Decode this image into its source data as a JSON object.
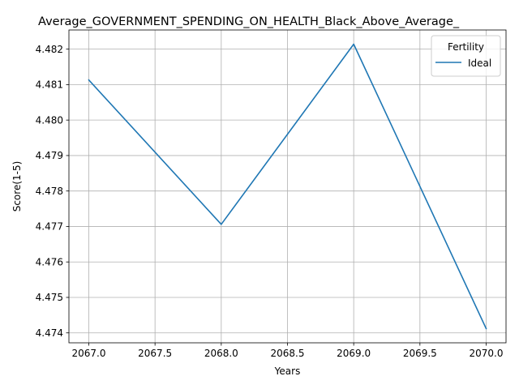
{
  "chart_data": {
    "type": "line",
    "title": "Average_GOVERNMENT_SPENDING_ON_HEALTH_Black_Above_Average_",
    "xlabel": "Years",
    "ylabel": "Score(1-5)",
    "x": [
      2067.0,
      2068.0,
      2069.0,
      2070.0
    ],
    "series": [
      {
        "name": "Ideal",
        "color": "#1f77b4",
        "values": [
          4.48113,
          4.47706,
          4.48214,
          4.47412
        ]
      }
    ],
    "xlim": [
      2066.85,
      2070.15
    ],
    "ylim": [
      4.47372,
      4.48254
    ],
    "xticks": [
      2067.0,
      2067.5,
      2068.0,
      2068.5,
      2069.0,
      2069.5,
      2070.0
    ],
    "xtick_labels": [
      "2067.0",
      "2067.5",
      "2068.0",
      "2068.5",
      "2069.0",
      "2069.5",
      "2070.0"
    ],
    "yticks": [
      4.474,
      4.475,
      4.476,
      4.477,
      4.478,
      4.479,
      4.48,
      4.481,
      4.482
    ],
    "ytick_labels": [
      "4.474",
      "4.475",
      "4.476",
      "4.477",
      "4.478",
      "4.479",
      "4.480",
      "4.481",
      "4.482"
    ],
    "grid": true,
    "legend": {
      "title": "Fertility",
      "position": "top-right"
    }
  }
}
